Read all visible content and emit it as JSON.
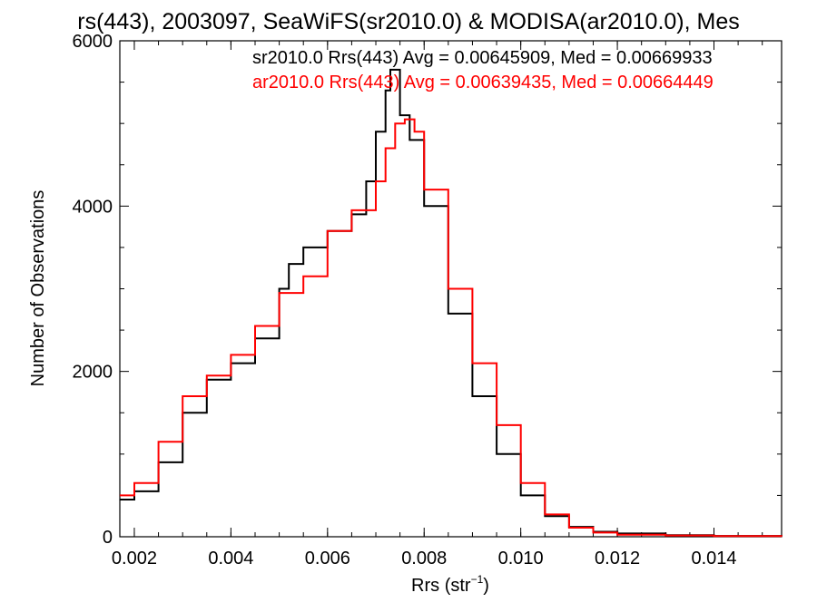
{
  "chart_data": {
    "type": "line",
    "title": "rs(443), 2003097, SeaWiFS(sr2010.0) & MODISA(ar2010.0), Mes",
    "xlabel": "Rrs (str",
    "xlabel_sup": "−1",
    "xlabel_suffix": ")",
    "ylabel": "Number of Observations",
    "xlim": [
      0.0017,
      0.0154
    ],
    "ylim": [
      0,
      6000
    ],
    "x_ticks": [
      0.002,
      0.004,
      0.006,
      0.008,
      0.01,
      0.012,
      0.014
    ],
    "x_tick_labels": [
      "0.002",
      "0.004",
      "0.006",
      "0.008",
      "0.010",
      "0.012",
      "0.014"
    ],
    "y_ticks": [
      0,
      2000,
      4000,
      6000
    ],
    "y_tick_labels": [
      "0",
      "2000",
      "4000",
      "6000"
    ],
    "grid": false,
    "legend_position": "top-right",
    "series": [
      {
        "name": "sr2010.0 Rrs(443) Avg = 0.00645909, Med = 0.00669933",
        "color": "#000000",
        "x": [
          0.0017,
          0.002,
          0.0025,
          0.003,
          0.0035,
          0.004,
          0.0045,
          0.005,
          0.0052,
          0.0055,
          0.006,
          0.0065,
          0.0068,
          0.007,
          0.0072,
          0.0073,
          0.0075,
          0.0077,
          0.008,
          0.0085,
          0.009,
          0.0095,
          0.01,
          0.0105,
          0.011,
          0.0115,
          0.012,
          0.013,
          0.014,
          0.0154
        ],
        "y": [
          450,
          550,
          900,
          1500,
          1900,
          2100,
          2400,
          3000,
          3300,
          3500,
          3700,
          3900,
          4300,
          4900,
          5400,
          5650,
          5100,
          4800,
          4000,
          2700,
          1700,
          1000,
          500,
          250,
          120,
          60,
          40,
          20,
          10,
          5
        ]
      },
      {
        "name": "ar2010.0 Rrs(443) Avg = 0.00639435, Med = 0.00664449",
        "color": "#ff0000",
        "x": [
          0.0017,
          0.002,
          0.0025,
          0.003,
          0.0035,
          0.004,
          0.0045,
          0.005,
          0.0055,
          0.006,
          0.0065,
          0.007,
          0.0072,
          0.0074,
          0.0076,
          0.0078,
          0.008,
          0.0085,
          0.009,
          0.0095,
          0.01,
          0.0105,
          0.011,
          0.0115,
          0.012,
          0.013,
          0.014,
          0.0154
        ],
        "y": [
          500,
          650,
          1150,
          1700,
          1950,
          2200,
          2550,
          2950,
          3150,
          3700,
          3950,
          4300,
          4700,
          5000,
          5050,
          4900,
          4200,
          3000,
          2100,
          1350,
          650,
          270,
          110,
          50,
          25,
          15,
          8,
          4
        ]
      }
    ]
  }
}
